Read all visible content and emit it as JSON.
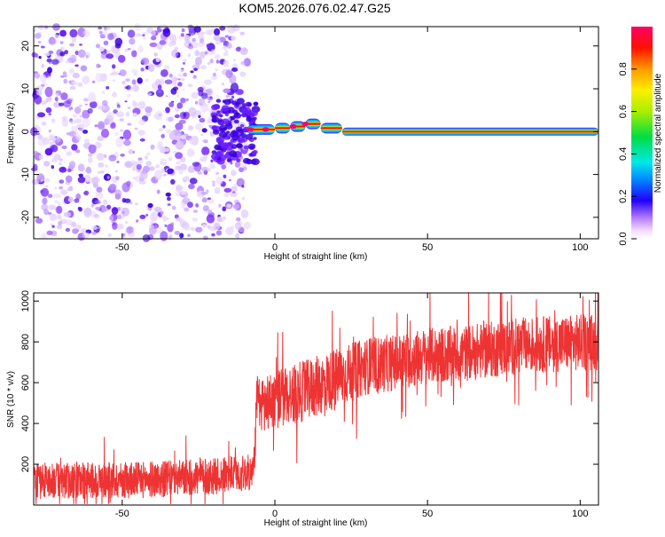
{
  "title": "KOM5.2026.076.02.47.G25",
  "chart_data": [
    {
      "type": "heatmap",
      "name": "spectrogram",
      "xlabel": "Height of straight line (km)",
      "ylabel": "Frequency (Hz)",
      "xlim": [
        -79,
        106
      ],
      "ylim": [
        -25,
        24.5
      ],
      "x_ticks": [
        -50,
        0,
        50,
        100
      ],
      "y_ticks": [
        -20,
        -10,
        0,
        10,
        20
      ],
      "noise_region_x": [
        -79,
        -9
      ],
      "transition_x": [
        -20,
        -6
      ],
      "signal_segments": [
        {
          "x": [
            -9,
            0
          ],
          "freq": 0.5
        },
        {
          "x": [
            0,
            5
          ],
          "freq": 0.8
        },
        {
          "x": [
            5,
            10
          ],
          "freq": 1.2
        },
        {
          "x": [
            10,
            15
          ],
          "freq": 1.8
        },
        {
          "x": [
            15,
            22
          ],
          "freq": 0.8
        },
        {
          "x": [
            22,
            106
          ],
          "freq": 0.0
        }
      ],
      "colorbar": {
        "label": "Normalized spectral amplitude",
        "range": [
          0.0,
          1.0
        ],
        "ticks": [
          0.0,
          0.2,
          0.4,
          0.6,
          0.8
        ],
        "tick_labels": [
          "0.0",
          "0.2",
          "0.4",
          "0.6",
          "0.8"
        ]
      }
    },
    {
      "type": "line",
      "name": "snr",
      "xlabel": "Height of straight line (km)",
      "ylabel": "SNR (10 * v/v)",
      "xlim": [
        -79,
        106
      ],
      "ylim": [
        0,
        1040
      ],
      "x_ticks": [
        -50,
        0,
        50,
        100
      ],
      "y_ticks": [
        200,
        400,
        600,
        800,
        1000
      ],
      "color": "#ee3333",
      "trend_x": [
        -79,
        -60,
        -40,
        -20,
        -7,
        -6,
        0,
        10,
        20,
        30,
        40,
        50,
        60,
        70,
        80,
        90,
        106
      ],
      "trend_y": [
        120,
        120,
        125,
        140,
        160,
        480,
        520,
        560,
        620,
        680,
        700,
        730,
        740,
        760,
        780,
        790,
        800
      ],
      "noise_amplitude": [
        90,
        90,
        90,
        90,
        90,
        140,
        150,
        150,
        150,
        140,
        140,
        140,
        140,
        140,
        140,
        140,
        140
      ]
    }
  ]
}
